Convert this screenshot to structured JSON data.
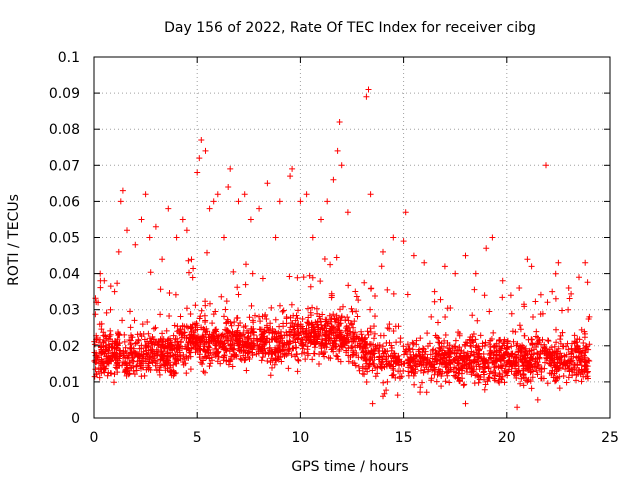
{
  "chart_data": {
    "type": "scatter",
    "title": "Day 156 of 2022, Rate Of TEC Index for receiver cibg",
    "xlabel": "GPS time / hours",
    "ylabel": "ROTI / TECUs",
    "xlim": [
      0,
      25
    ],
    "ylim": [
      0,
      0.1
    ],
    "xticks": [
      "0",
      "5",
      "10",
      "15",
      "20",
      "25"
    ],
    "yticks": [
      "0",
      "0.01",
      "0.02",
      "0.03",
      "0.04",
      "0.05",
      "0.06",
      "0.07",
      "0.08",
      "0.09",
      "0.1"
    ],
    "grid": true,
    "marker": "plus",
    "marker_color": "#ff0000",
    "series": [
      {
        "x_range": [
          0,
          24
        ],
        "points": [
          [
            0.1,
            0.018
          ],
          [
            0.2,
            0.032
          ],
          [
            0.3,
            0.04
          ],
          [
            0.5,
            0.038
          ],
          [
            0.8,
            0.03
          ],
          [
            1.0,
            0.035
          ],
          [
            1.2,
            0.046
          ],
          [
            1.3,
            0.06
          ],
          [
            1.4,
            0.063
          ],
          [
            1.6,
            0.052
          ],
          [
            2.0,
            0.048
          ],
          [
            2.3,
            0.055
          ],
          [
            2.5,
            0.062
          ],
          [
            2.7,
            0.05
          ],
          [
            3.0,
            0.053
          ],
          [
            3.3,
            0.044
          ],
          [
            3.6,
            0.058
          ],
          [
            4.0,
            0.05
          ],
          [
            4.3,
            0.055
          ],
          [
            4.5,
            0.052
          ],
          [
            5.0,
            0.068
          ],
          [
            5.1,
            0.072
          ],
          [
            5.2,
            0.077
          ],
          [
            5.4,
            0.074
          ],
          [
            5.6,
            0.058
          ],
          [
            5.8,
            0.06
          ],
          [
            6.0,
            0.062
          ],
          [
            6.3,
            0.05
          ],
          [
            6.5,
            0.064
          ],
          [
            6.6,
            0.069
          ],
          [
            7.0,
            0.06
          ],
          [
            7.3,
            0.062
          ],
          [
            7.6,
            0.055
          ],
          [
            8.0,
            0.058
          ],
          [
            8.4,
            0.065
          ],
          [
            8.8,
            0.05
          ],
          [
            9.0,
            0.06
          ],
          [
            9.5,
            0.067
          ],
          [
            9.6,
            0.069
          ],
          [
            10.0,
            0.06
          ],
          [
            10.3,
            0.062
          ],
          [
            10.6,
            0.05
          ],
          [
            11.0,
            0.055
          ],
          [
            11.3,
            0.06
          ],
          [
            11.6,
            0.066
          ],
          [
            11.8,
            0.074
          ],
          [
            11.9,
            0.082
          ],
          [
            12.0,
            0.07
          ],
          [
            12.3,
            0.057
          ],
          [
            13.2,
            0.089
          ],
          [
            13.3,
            0.091
          ],
          [
            13.4,
            0.062
          ],
          [
            14.0,
            0.046
          ],
          [
            14.5,
            0.05
          ],
          [
            15.0,
            0.049
          ],
          [
            15.1,
            0.057
          ],
          [
            15.5,
            0.045
          ],
          [
            16.0,
            0.043
          ],
          [
            16.5,
            0.035
          ],
          [
            17.0,
            0.042
          ],
          [
            17.5,
            0.04
          ],
          [
            18.0,
            0.045
          ],
          [
            18.5,
            0.04
          ],
          [
            19.0,
            0.047
          ],
          [
            19.3,
            0.05
          ],
          [
            19.8,
            0.038
          ],
          [
            20.2,
            0.034
          ],
          [
            20.6,
            0.036
          ],
          [
            21.0,
            0.044
          ],
          [
            21.2,
            0.042
          ],
          [
            21.9,
            0.07
          ],
          [
            22.2,
            0.035
          ],
          [
            22.5,
            0.043
          ],
          [
            23.0,
            0.036
          ],
          [
            23.5,
            0.039
          ],
          [
            23.8,
            0.043
          ],
          [
            24.0,
            0.028
          ],
          [
            13.5,
            0.004
          ],
          [
            14.0,
            0.006
          ],
          [
            18.0,
            0.004
          ],
          [
            20.5,
            0.003
          ],
          [
            21.5,
            0.005
          ]
        ]
      }
    ]
  }
}
